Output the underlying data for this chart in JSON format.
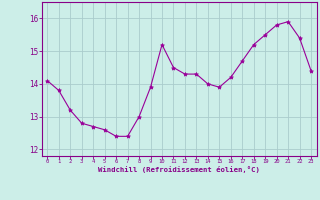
{
  "x": [
    0,
    1,
    2,
    3,
    4,
    5,
    6,
    7,
    8,
    9,
    10,
    11,
    12,
    13,
    14,
    15,
    16,
    17,
    18,
    19,
    20,
    21,
    22,
    23
  ],
  "y": [
    14.1,
    13.8,
    13.2,
    12.8,
    12.7,
    12.6,
    12.4,
    12.4,
    13.0,
    13.9,
    15.2,
    14.5,
    14.3,
    14.3,
    14.0,
    13.9,
    14.2,
    14.7,
    15.2,
    15.5,
    15.8,
    15.9,
    15.4,
    14.4
  ],
  "line_color": "#990099",
  "marker": "*",
  "marker_size": 3,
  "bg_color": "#cceee8",
  "grid_color": "#aacccc",
  "axis_color": "#880088",
  "xlabel": "Windchill (Refroidissement éolien,°C)",
  "ylim": [
    11.8,
    16.5
  ],
  "yticks": [
    12,
    13,
    14,
    15,
    16
  ],
  "xticks": [
    0,
    1,
    2,
    3,
    4,
    5,
    6,
    7,
    8,
    9,
    10,
    11,
    12,
    13,
    14,
    15,
    16,
    17,
    18,
    19,
    20,
    21,
    22,
    23
  ],
  "figsize": [
    3.2,
    2.0
  ],
  "dpi": 100
}
